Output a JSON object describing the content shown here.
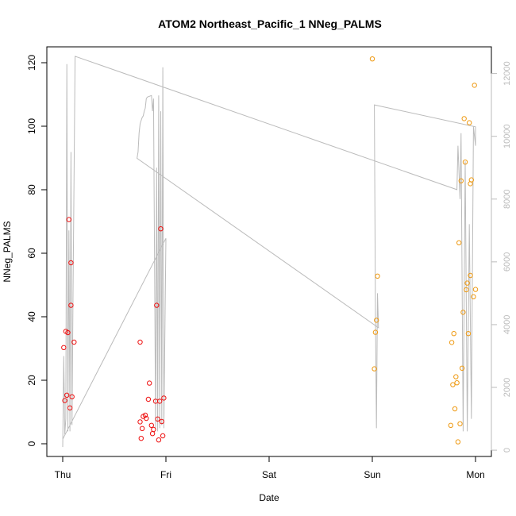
{
  "chart_data": {
    "type": "scatter",
    "title": "ATOM2 Northeast_Pacific_1 NNeg_PALMS",
    "xlabel": "Date",
    "ylabel": "NNeg_PALMS",
    "y2label": "",
    "x_ticks": [
      "Thu",
      "Fri",
      "Sat",
      "Sun",
      "Mon"
    ],
    "x_range_days": [
      0,
      4.15
    ],
    "ylim": [
      -4,
      125
    ],
    "y_ticks": [
      0,
      20,
      40,
      60,
      80,
      100,
      120
    ],
    "y2lim": [
      -200,
      12850
    ],
    "y2_ticks": [
      0,
      2000,
      4000,
      6000,
      8000,
      10000,
      12000
    ],
    "colors": {
      "red": "#ee1111",
      "orange": "#ee9911",
      "altitude_line": "#bbbbbb",
      "secondary_axis": "#bbbbbb",
      "frame": "#000000"
    },
    "series": [
      {
        "color": "red",
        "points": [
          [
            0.01,
            30.3
          ],
          [
            0.02,
            13.6
          ],
          [
            0.03,
            35.4
          ],
          [
            0.04,
            15.3
          ],
          [
            0.05,
            35.0
          ],
          [
            0.06,
            70.6
          ],
          [
            0.07,
            11.3
          ],
          [
            0.08,
            57.0
          ],
          [
            0.08,
            43.6
          ],
          [
            0.09,
            14.8
          ],
          [
            0.11,
            32.0
          ],
          [
            0.75,
            32.0
          ],
          [
            0.75,
            6.9
          ],
          [
            0.76,
            1.7
          ],
          [
            0.77,
            4.8
          ],
          [
            0.78,
            8.6
          ],
          [
            0.8,
            9.0
          ],
          [
            0.81,
            8.0
          ],
          [
            0.83,
            14.0
          ],
          [
            0.84,
            19.1
          ],
          [
            0.86,
            5.8
          ],
          [
            0.87,
            3.2
          ],
          [
            0.88,
            4.5
          ],
          [
            0.9,
            13.4
          ],
          [
            0.91,
            43.6
          ],
          [
            0.92,
            7.8
          ],
          [
            0.93,
            1.2
          ],
          [
            0.94,
            13.4
          ],
          [
            0.95,
            67.7
          ],
          [
            0.96,
            7.0
          ],
          [
            0.97,
            2.5
          ],
          [
            0.98,
            14.4
          ]
        ]
      },
      {
        "color": "orange",
        "points": [
          [
            3.0,
            121.2
          ],
          [
            3.02,
            23.6
          ],
          [
            3.03,
            35.1
          ],
          [
            3.04,
            38.9
          ],
          [
            3.05,
            52.8
          ],
          [
            3.76,
            5.8
          ],
          [
            3.77,
            31.9
          ],
          [
            3.78,
            18.6
          ],
          [
            3.79,
            34.7
          ],
          [
            3.8,
            11.0
          ],
          [
            3.81,
            21.1
          ],
          [
            3.82,
            19.2
          ],
          [
            3.83,
            0.6
          ],
          [
            3.84,
            63.3
          ],
          [
            3.85,
            6.3
          ],
          [
            3.86,
            82.8
          ],
          [
            3.87,
            23.8
          ],
          [
            3.88,
            41.4
          ],
          [
            3.89,
            102.4
          ],
          [
            3.9,
            88.7
          ],
          [
            3.91,
            48.5
          ],
          [
            3.92,
            50.6
          ],
          [
            3.93,
            34.7
          ],
          [
            3.94,
            101.1
          ],
          [
            3.95,
            53.0
          ],
          [
            3.95,
            81.9
          ],
          [
            3.96,
            83.1
          ],
          [
            3.98,
            46.3
          ],
          [
            3.99,
            112.9
          ],
          [
            4.0,
            48.6
          ]
        ]
      }
    ],
    "altitude_line": [
      [
        0.0,
        100
      ],
      [
        0.01,
        3000
      ],
      [
        0.02,
        500
      ],
      [
        0.03,
        1000
      ],
      [
        0.04,
        12300
      ],
      [
        0.05,
        600
      ],
      [
        0.06,
        7000
      ],
      [
        0.07,
        600
      ],
      [
        0.08,
        9500
      ],
      [
        0.09,
        800
      ],
      [
        0.1,
        5000
      ],
      [
        0.12,
        12550
      ],
      [
        3.82,
        8300
      ],
      [
        3.83,
        9700
      ],
      [
        3.85,
        8000
      ],
      [
        3.86,
        10100
      ],
      [
        3.88,
        600
      ],
      [
        3.9,
        9200
      ],
      [
        3.92,
        600
      ],
      [
        3.94,
        7200
      ],
      [
        3.96,
        1000
      ],
      [
        3.98,
        10300
      ],
      [
        4.0,
        9700
      ],
      [
        4.0,
        10300
      ],
      [
        3.02,
        11000
      ],
      [
        3.02,
        10900
      ],
      [
        3.03,
        4500
      ],
      [
        3.04,
        700
      ],
      [
        3.05,
        5000
      ],
      [
        3.06,
        3900
      ],
      [
        0.72,
        9300
      ],
      [
        0.73,
        9500
      ],
      [
        0.74,
        10100
      ],
      [
        0.75,
        10400
      ],
      [
        0.76,
        10500
      ],
      [
        0.77,
        10600
      ],
      [
        0.78,
        10650
      ],
      [
        0.79,
        10800
      ],
      [
        0.8,
        10900
      ],
      [
        0.81,
        11200
      ],
      [
        0.82,
        11250
      ],
      [
        0.86,
        11300
      ],
      [
        0.87,
        10800
      ],
      [
        0.88,
        11200
      ],
      [
        0.9,
        700
      ],
      [
        0.91,
        9000
      ],
      [
        0.92,
        600
      ],
      [
        0.93,
        11300
      ],
      [
        0.94,
        700
      ],
      [
        0.95,
        10800
      ],
      [
        0.96,
        800
      ],
      [
        0.97,
        12200
      ],
      [
        0.98,
        700
      ],
      [
        1.0,
        6750
      ],
      [
        0.0,
        350
      ]
    ]
  }
}
